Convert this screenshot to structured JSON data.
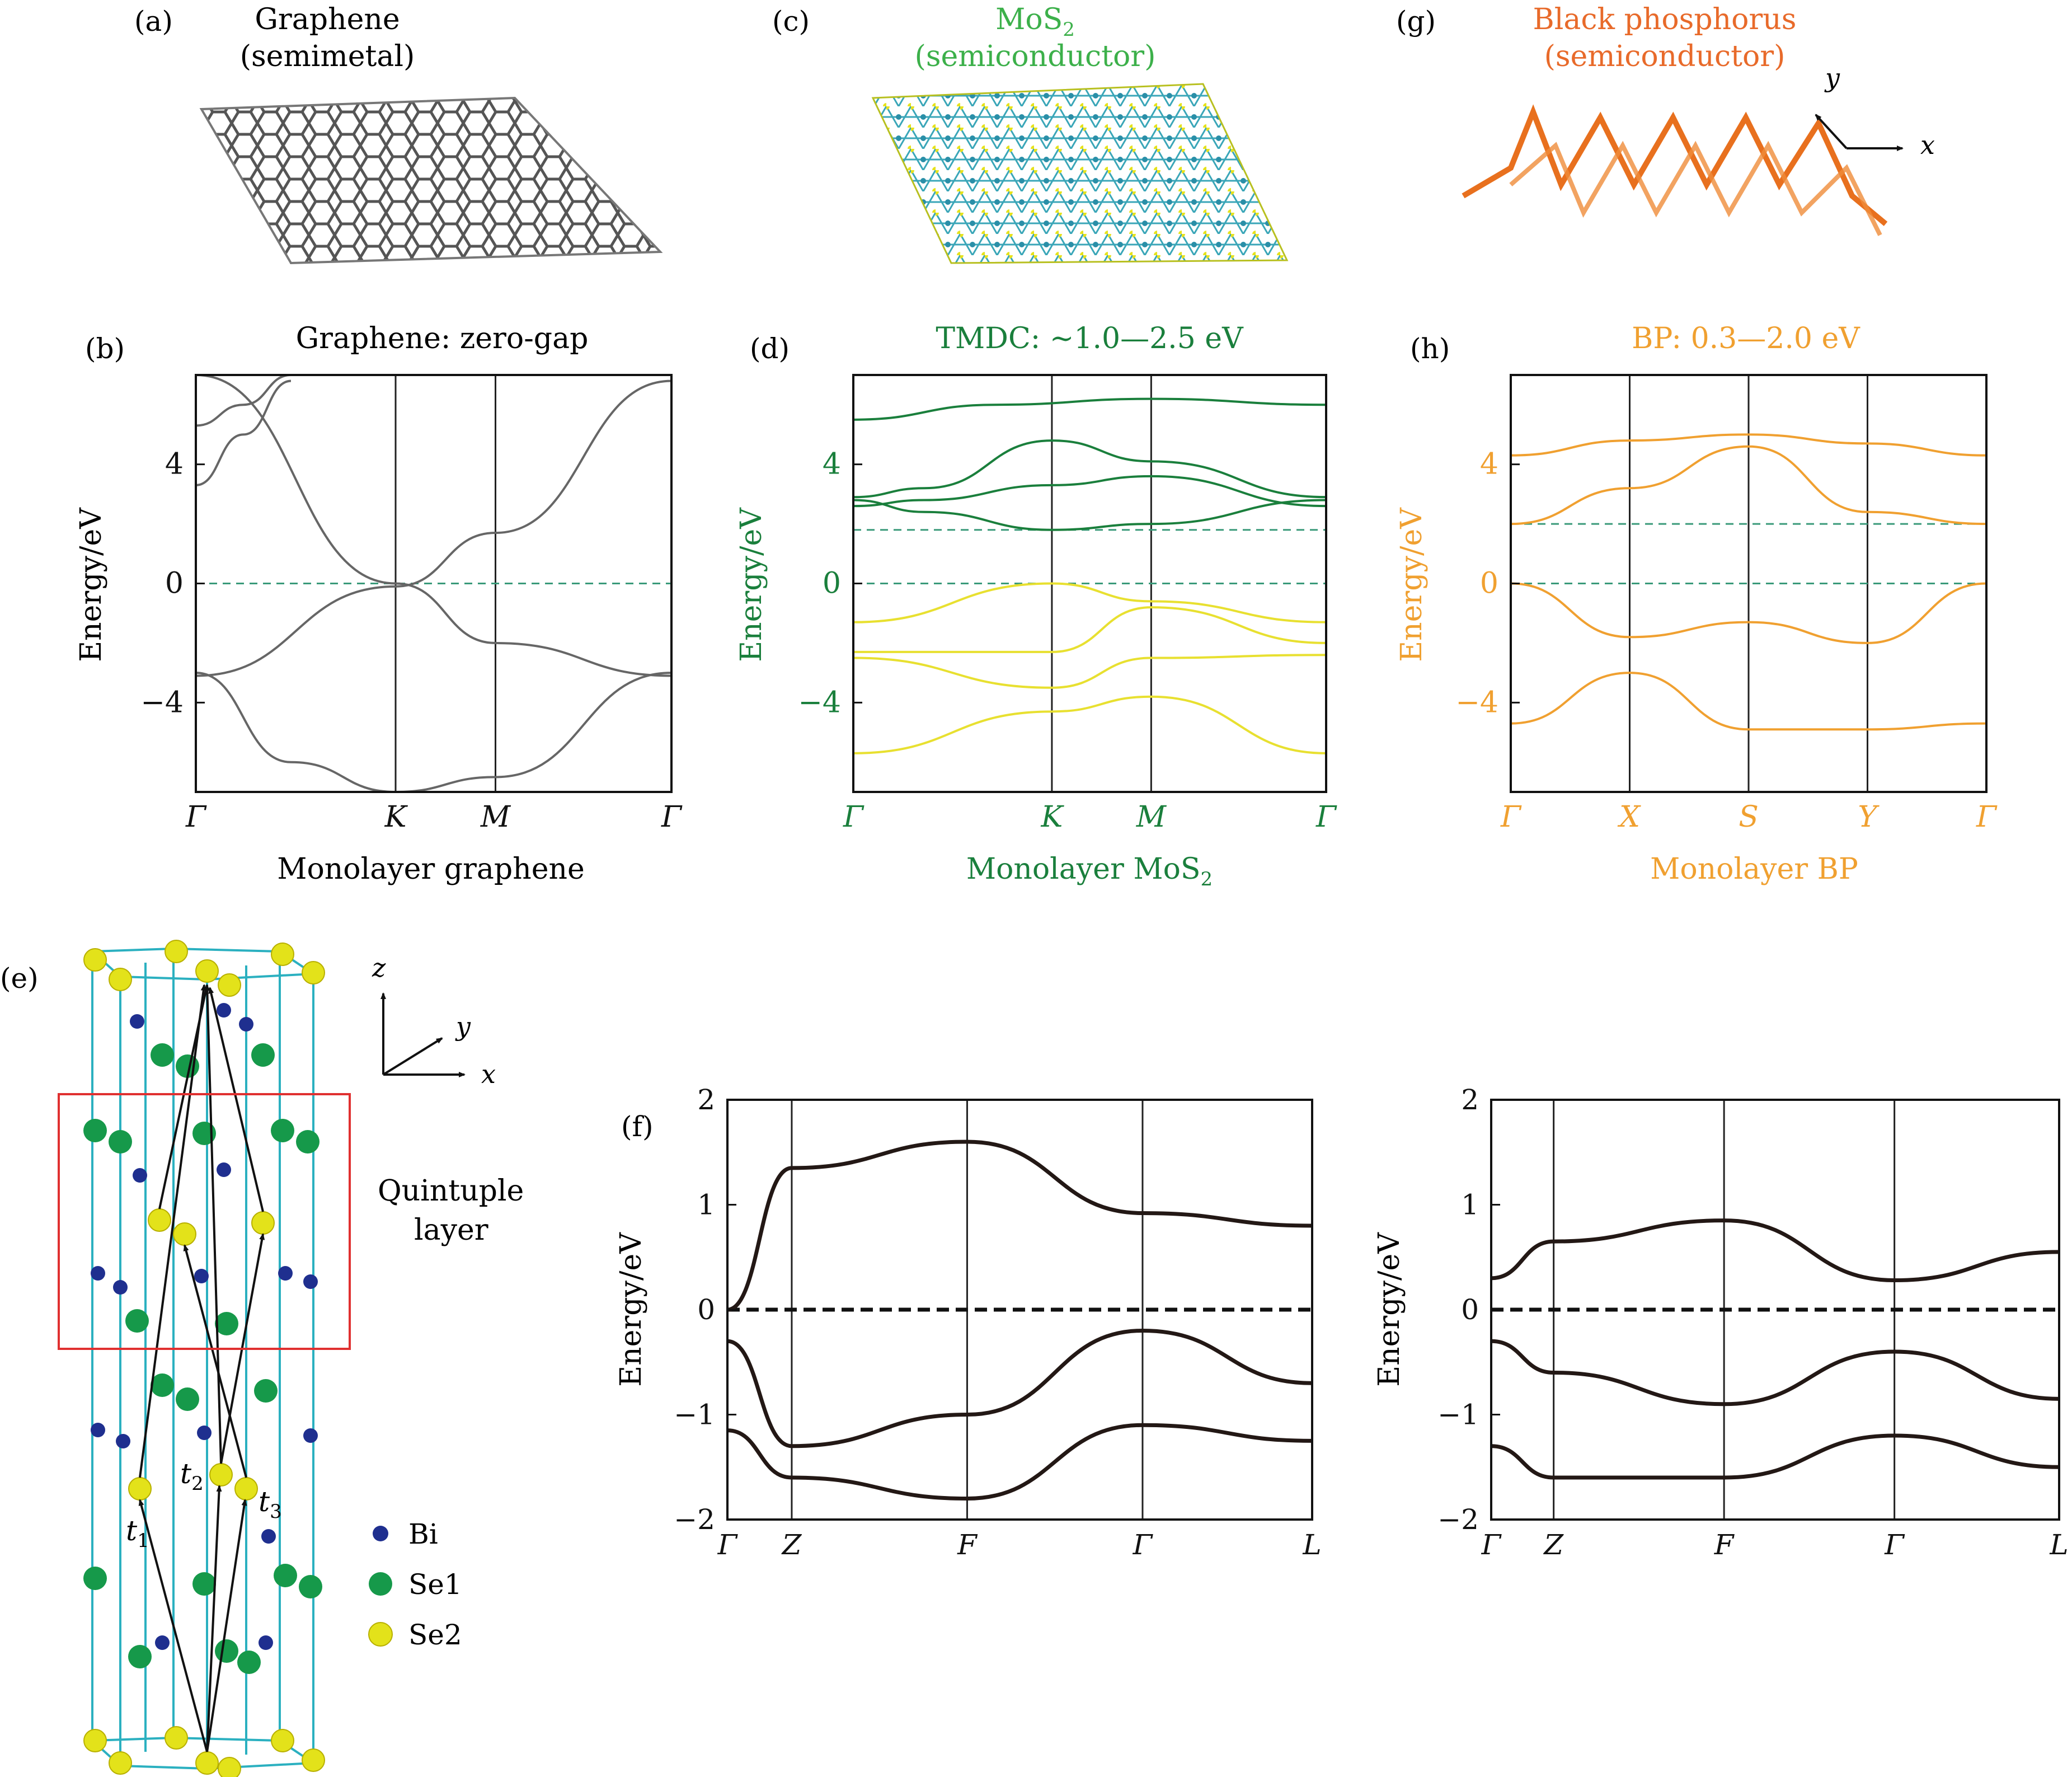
{
  "panels": {
    "a": {
      "letter": "(a)",
      "title1": "Graphene",
      "title2": "(semimetal)"
    },
    "c": {
      "letter": "(c)",
      "title1": "MoS",
      "title1_sub": "2",
      "title2": "(semiconductor)"
    },
    "g": {
      "letter": "(g)",
      "title1": "Black phosphorus",
      "title2": "(semiconductor)",
      "axis_x": "x",
      "axis_y": "y"
    },
    "b": {
      "letter": "(b)",
      "title": "Graphene: zero-gap",
      "ylabel": "Energy/eV",
      "xlabel": "Monolayer graphene"
    },
    "d": {
      "letter": "(d)",
      "title": "TMDC: ~1.0—2.5 eV",
      "ylabel": "Energy/eV",
      "xlabel": "Monolayer MoS",
      "xlabel_sub": "2"
    },
    "h": {
      "letter": "(h)",
      "title": "BP: 0.3—2.0 eV",
      "ylabel": "Energy/eV",
      "xlabel": "Monolayer BP"
    },
    "e": {
      "letter": "(e)",
      "axis_x": "x",
      "axis_y": "y",
      "axis_z": "z",
      "ql_line1": "Quintuple",
      "ql_line2": "layer",
      "t1": "t",
      "t1_sub": "1",
      "t2": "t",
      "t2_sub": "2",
      "t3": "t",
      "t3_sub": "3",
      "legend": [
        {
          "label": "Bi",
          "color": "#1f2f8f"
        },
        {
          "label": "Se1",
          "color": "#16994a"
        },
        {
          "label": "Se2",
          "color": "#e3e21a"
        }
      ]
    },
    "f": {
      "letter": "(f)",
      "ylabel": "Energy/eV"
    }
  },
  "colors": {
    "graphene": "#666666",
    "mos2_title": "#3cb04a",
    "tmdc": "#1a7f3c",
    "valence_yellow": "#e8e030",
    "bp_title": "#e86a2a",
    "bp": "#f0a030",
    "fermi": "#3a9a7a",
    "band_f": "#231815"
  },
  "chart_data": [
    {
      "type": "line",
      "title": "Graphene: zero-gap",
      "ylabel": "Energy/eV",
      "xlabel": "Monolayer graphene",
      "x_ticks": [
        "Γ",
        "K",
        "M",
        "Γ"
      ],
      "y_ticks": [
        -4,
        0,
        4
      ],
      "ylim": [
        -7,
        7
      ],
      "series": [
        {
          "x": [
            0,
            0.42,
            0.63,
            1.0
          ],
          "y": [
            7,
            0,
            -2,
            -3.1
          ]
        },
        {
          "x": [
            0,
            0.42,
            0.63,
            1.0
          ],
          "y": [
            -3.1,
            -0.1,
            1.7,
            6.8
          ]
        },
        {
          "x": [
            0,
            0.2,
            0.42,
            0.63,
            1.0
          ],
          "y": [
            -3.0,
            -6,
            -7,
            -6.5,
            -3.0
          ]
        },
        {
          "x": [
            0,
            0.1,
            0.2
          ],
          "y": [
            3.3,
            5,
            6.8
          ]
        },
        {
          "x": [
            0,
            0.1,
            0.2
          ],
          "y": [
            5.3,
            6,
            7
          ]
        }
      ]
    },
    {
      "type": "line",
      "title": "TMDC: ~1.0—2.5 eV",
      "ylabel": "Energy/eV",
      "xlabel": "Monolayer MoS2",
      "x_ticks": [
        "Γ",
        "K",
        "M",
        "Γ"
      ],
      "y_ticks": [
        -4,
        0,
        4
      ],
      "ylim": [
        -7,
        7
      ],
      "reference_lines": [
        0,
        1.8
      ],
      "conduction": [
        {
          "x": [
            0,
            0.15,
            0.42,
            0.63,
            1.0
          ],
          "y": [
            2.8,
            2.4,
            1.8,
            2.0,
            2.8
          ]
        },
        {
          "x": [
            0,
            0.15,
            0.42,
            0.63,
            1.0
          ],
          "y": [
            2.9,
            3.2,
            4.8,
            4.1,
            2.9
          ]
        },
        {
          "x": [
            0,
            0.15,
            0.42,
            0.63,
            1.0
          ],
          "y": [
            2.6,
            2.8,
            3.3,
            3.6,
            2.6
          ]
        },
        {
          "x": [
            0,
            0.3,
            0.63,
            1.0
          ],
          "y": [
            5.5,
            6.0,
            6.2,
            6.0
          ]
        }
      ],
      "valence": [
        {
          "x": [
            0,
            0.42,
            0.63,
            1.0
          ],
          "y": [
            -1.3,
            0.0,
            -0.6,
            -1.3
          ]
        },
        {
          "x": [
            0,
            0.42,
            0.63,
            1.0
          ],
          "y": [
            -2.3,
            -2.3,
            -0.8,
            -2.0
          ]
        },
        {
          "x": [
            0,
            0.42,
            0.63,
            1.0
          ],
          "y": [
            -2.5,
            -3.5,
            -2.5,
            -2.4
          ]
        },
        {
          "x": [
            0,
            0.42,
            0.63,
            1.0
          ],
          "y": [
            -5.7,
            -4.3,
            -3.8,
            -5.7
          ]
        }
      ]
    },
    {
      "type": "line",
      "title": "BP: 0.3—2.0 eV",
      "ylabel": "Energy/eV",
      "xlabel": "Monolayer BP",
      "x_ticks": [
        "Γ",
        "X",
        "S",
        "Y",
        "Γ"
      ],
      "y_ticks": [
        -4,
        0,
        4
      ],
      "ylim": [
        -7,
        7
      ],
      "reference_lines": [
        0,
        2.0
      ],
      "series": [
        {
          "x": [
            0,
            0.25,
            0.5,
            0.75,
            1.0
          ],
          "y": [
            2.0,
            3.2,
            4.6,
            2.4,
            2.0
          ]
        },
        {
          "x": [
            0,
            0.25,
            0.5,
            0.75,
            1.0
          ],
          "y": [
            0.0,
            -1.8,
            -1.3,
            -2.0,
            0.0
          ]
        },
        {
          "x": [
            0,
            0.25,
            0.5,
            0.75,
            1.0
          ],
          "y": [
            -4.7,
            -3.0,
            -4.9,
            -4.9,
            -4.7
          ]
        },
        {
          "x": [
            0,
            0.25,
            0.5,
            0.75,
            1.0
          ],
          "y": [
            4.3,
            4.8,
            5.0,
            4.7,
            4.3
          ]
        }
      ]
    },
    {
      "type": "line",
      "ylabel": "Energy/eV",
      "x_ticks": [
        "Γ",
        "Z",
        "F",
        "Γ",
        "L"
      ],
      "y_ticks": [
        -2,
        -1,
        0,
        1,
        2
      ],
      "ylim": [
        -2,
        2
      ],
      "reference_lines": [
        0
      ],
      "series": [
        {
          "x": [
            0,
            0.11,
            0.41,
            0.71,
            1.0
          ],
          "y": [
            0.0,
            1.35,
            1.6,
            0.92,
            0.8
          ]
        },
        {
          "x": [
            0,
            0.11,
            0.41,
            0.71,
            1.0
          ],
          "y": [
            -0.3,
            -1.3,
            -1.0,
            -0.2,
            -0.7
          ]
        },
        {
          "x": [
            0,
            0.11,
            0.41,
            0.71,
            1.0
          ],
          "y": [
            -1.15,
            -1.6,
            -1.8,
            -1.1,
            -1.25
          ]
        }
      ]
    },
    {
      "type": "line",
      "x_ticks": [
        "Γ",
        "Z",
        "F",
        "Γ",
        "L"
      ],
      "y_ticks": [
        -2,
        -1,
        0,
        1,
        2
      ],
      "ylim": [
        -2,
        2
      ],
      "reference_lines": [
        0
      ],
      "series": [
        {
          "x": [
            0,
            0.11,
            0.41,
            0.71,
            1.0
          ],
          "y": [
            0.3,
            0.65,
            0.85,
            0.28,
            0.55
          ]
        },
        {
          "x": [
            0,
            0.11,
            0.41,
            0.71,
            1.0
          ],
          "y": [
            -0.3,
            -0.6,
            -0.9,
            -0.4,
            -0.85
          ]
        },
        {
          "x": [
            0,
            0.11,
            0.41,
            0.71,
            1.0
          ],
          "y": [
            -1.3,
            -1.6,
            -1.6,
            -1.2,
            -1.5
          ]
        }
      ]
    }
  ]
}
